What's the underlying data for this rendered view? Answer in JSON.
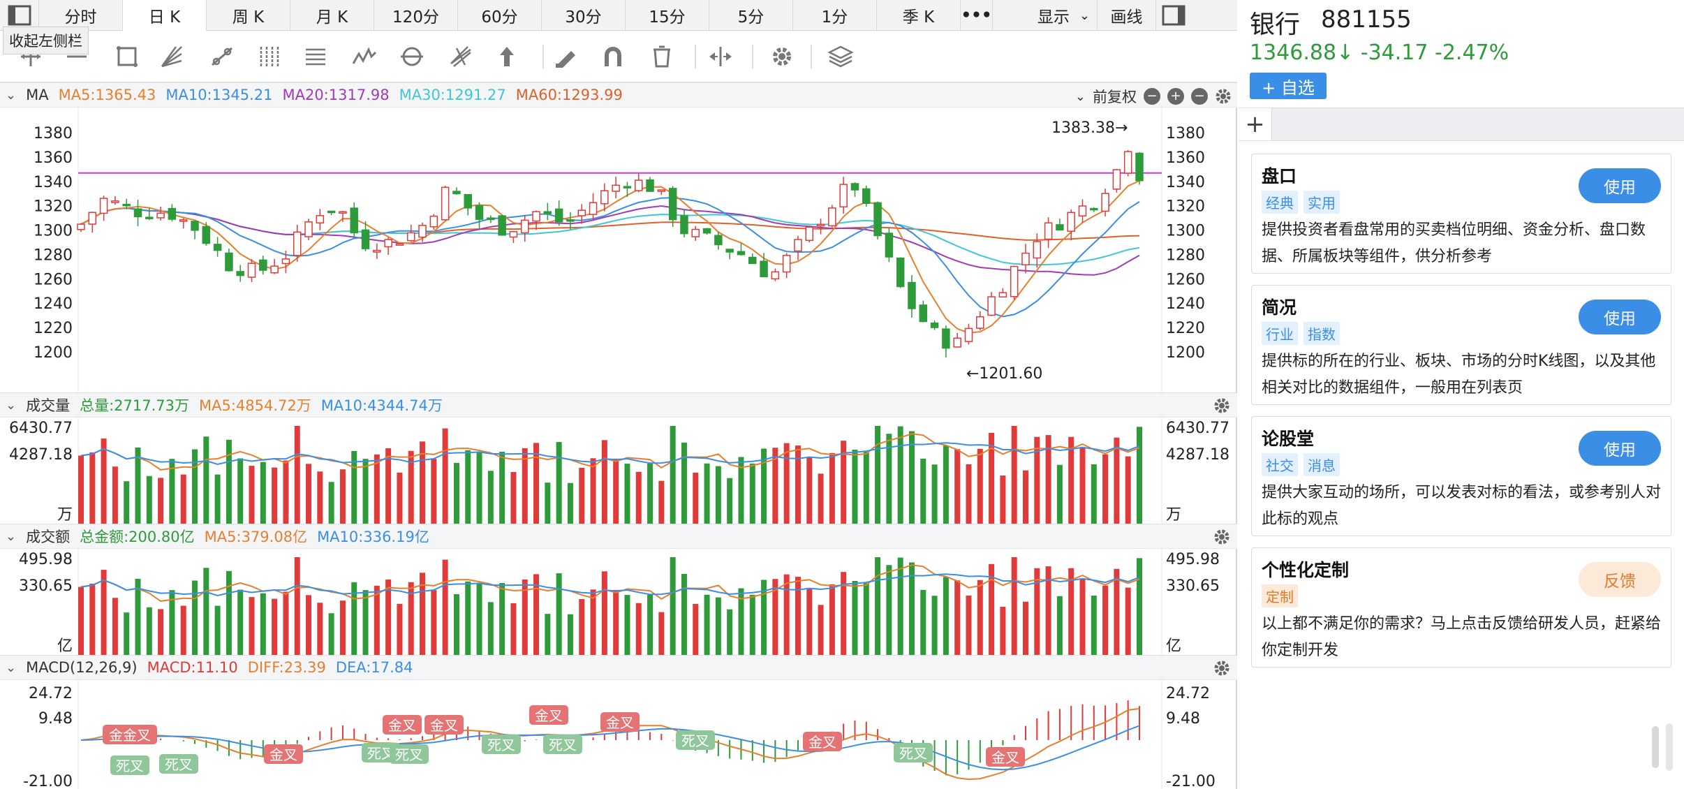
{
  "period_bar": {
    "items": [
      {
        "label": "分时",
        "w": 118,
        "active": false
      },
      {
        "label": "日 K",
        "w": 118,
        "active": true
      },
      {
        "label": "周 K",
        "w": 118,
        "active": false
      },
      {
        "label": "月 K",
        "w": 118,
        "active": false
      },
      {
        "label": "120分",
        "w": 118,
        "active": false
      },
      {
        "label": "60分",
        "w": 118,
        "active": false
      },
      {
        "label": "30分",
        "w": 118,
        "active": false
      },
      {
        "label": "15分",
        "w": 118,
        "active": false
      },
      {
        "label": "5分",
        "w": 118,
        "active": false
      },
      {
        "label": "1分",
        "w": 118,
        "active": false
      },
      {
        "label": "季 K",
        "w": 118,
        "active": false
      }
    ],
    "more": "•••",
    "display": "显示",
    "draw": "画线"
  },
  "collapse_tip": "收起左侧栏",
  "toolbar_icons": [
    "crosshair-icon",
    "line-icon",
    "rect-icon",
    "fan-icon",
    "segment-icon",
    "channel-icon",
    "text-icon",
    "wave-icon",
    "cycle-icon",
    "fib-icon",
    "arrow-up-icon",
    "eraser-icon",
    "magnet-icon",
    "trash-icon",
    "fit-icon",
    "settings-icon",
    "layers-icon"
  ],
  "ma_head": {
    "name": "MA",
    "ma5": "MA5:1365.43",
    "ma10": "MA10:1345.21",
    "ma20": "MA20:1317.98",
    "ma30": "MA30:1291.27",
    "ma60": "MA60:1293.99",
    "adj": "前复权"
  },
  "price_axis": [
    "1380",
    "1360",
    "1340",
    "1320",
    "1300",
    "1280",
    "1260",
    "1240",
    "1220",
    "1200"
  ],
  "price_annotations": {
    "high": "1383.38",
    "low": "1201.60"
  },
  "vol_head": {
    "name": "成交量",
    "total": "总量:2717.73万",
    "ma5": "MA5:4854.72万",
    "ma10": "MA10:4344.74万"
  },
  "vol_axis": {
    "top": "6430.77",
    "mid": "4287.18",
    "unit": "万"
  },
  "amt_head": {
    "name": "成交额",
    "total": "总金额:200.80亿",
    "ma5": "MA5:379.08亿",
    "ma10": "MA10:336.19亿"
  },
  "amt_axis": {
    "top": "495.98",
    "mid": "330.65",
    "unit": "亿"
  },
  "macd_head": {
    "name": "MACD(12,26,9)",
    "macd": "MACD:11.10",
    "diff": "DIFF:23.39",
    "dea": "DEA:17.84"
  },
  "macd_axis": {
    "top": "24.72",
    "mid": "9.48",
    "bottom": "-21.00"
  },
  "macd_labels": {
    "golden": "金叉",
    "golden_double": "金金叉",
    "dead": "死叉"
  },
  "stock": {
    "name": "银行",
    "code": "881155",
    "price": "1346.88↓",
    "change": "-34.17",
    "pct": "-2.47%",
    "add_fav": "+ 自选"
  },
  "cards": [
    {
      "title": "盘口",
      "tags": [
        "经典",
        "实用"
      ],
      "desc": "提供投资者看盘常用的买卖档位明细、资金分析、盘口数据、所属板块等组件，供分析参考",
      "btn": "使用"
    },
    {
      "title": "简况",
      "tags": [
        "行业",
        "指数"
      ],
      "desc": "提供标的所在的行业、板块、市场的分时K线图，以及其他相关对比的数据组件，一般用在列表页",
      "btn": "使用"
    },
    {
      "title": "论股堂",
      "tags": [
        "社交",
        "消息"
      ],
      "desc": "提供大家互动的场所，可以发表对标的看法，或参考别人对此标的观点",
      "btn": "使用"
    },
    {
      "title": "个性化定制",
      "tags": [
        "定制"
      ],
      "desc": "以上都不满足你的需求？马上点击反馈给研发人员，赶紧给你定制开发",
      "btn": "反馈"
    }
  ],
  "colors": {
    "up": "#e03a3a",
    "down": "#2e9b3a",
    "ma5": "#e87f2c",
    "ma10": "#3a8ee6",
    "ma20": "#a33ab5",
    "ma30": "#3ec7d6",
    "ma60": "#e0602a"
  }
}
